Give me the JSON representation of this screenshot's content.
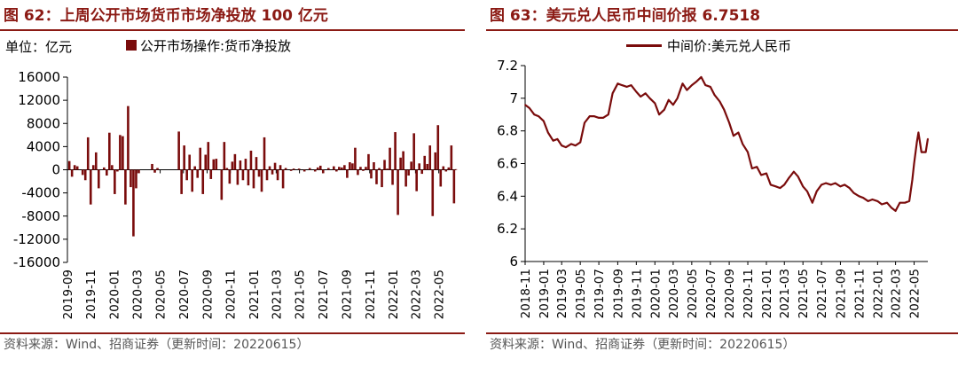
{
  "chart_data": [
    {
      "type": "bar",
      "title": "图 62：上周公开市场货币市场净投放 100 亿元",
      "unit_label": "单位：亿元",
      "legend": [
        "公开市场操作:货币净投放"
      ],
      "color": "#7a0c0c",
      "y_ticks": [
        "16000",
        "12000",
        "8000",
        "4000",
        "0",
        "-4000",
        "-8000",
        "-12000",
        "-16000"
      ],
      "ylim": [
        -16000,
        16000
      ],
      "x_ticks": [
        "2019-09",
        "2019-11",
        "2020-01",
        "2020-03",
        "2020-05",
        "2020-07",
        "2020-09",
        "2020-11",
        "2021-01",
        "2021-03",
        "2021-05",
        "2021-07",
        "2021-09",
        "2021-11",
        "2022-01",
        "2022-03",
        "2022-05"
      ],
      "x_range": [
        "2019-09-01",
        "2022-06-15"
      ],
      "series": [
        {
          "points": [
            [
              "2019-09-06",
              1500
            ],
            [
              "2019-09-13",
              -1200
            ],
            [
              "2019-09-20",
              800
            ],
            [
              "2019-09-27",
              600
            ],
            [
              "2019-10-11",
              -900
            ],
            [
              "2019-10-18",
              -1800
            ],
            [
              "2019-10-25",
              5600
            ],
            [
              "2019-11-01",
              -6000
            ],
            [
              "2019-11-08",
              800
            ],
            [
              "2019-11-15",
              3000
            ],
            [
              "2019-11-22",
              -3200
            ],
            [
              "2019-12-06",
              400
            ],
            [
              "2019-12-13",
              -1000
            ],
            [
              "2019-12-20",
              6400
            ],
            [
              "2019-12-27",
              800
            ],
            [
              "2020-01-03",
              -4200
            ],
            [
              "2020-01-10",
              -300
            ],
            [
              "2020-01-17",
              6000
            ],
            [
              "2020-01-24",
              5800
            ],
            [
              "2020-01-31",
              -6000
            ],
            [
              "2020-02-07",
              11000
            ],
            [
              "2020-02-14",
              -3000
            ],
            [
              "2020-02-21",
              -11500
            ],
            [
              "2020-02-28",
              -3200
            ],
            [
              "2020-03-06",
              -600
            ],
            [
              "2020-04-10",
              1000
            ],
            [
              "2020-04-17",
              -500
            ],
            [
              "2020-04-24",
              300
            ],
            [
              "2020-06-19",
              6600
            ],
            [
              "2020-06-26",
              -4200
            ],
            [
              "2020-07-03",
              4200
            ],
            [
              "2020-07-10",
              -1800
            ],
            [
              "2020-07-17",
              2600
            ],
            [
              "2020-07-24",
              -3800
            ],
            [
              "2020-07-31",
              600
            ],
            [
              "2020-08-07",
              -1400
            ],
            [
              "2020-08-14",
              3800
            ],
            [
              "2020-08-21",
              -4200
            ],
            [
              "2020-08-28",
              2600
            ],
            [
              "2020-09-04",
              4800
            ],
            [
              "2020-09-11",
              -1600
            ],
            [
              "2020-09-18",
              1800
            ],
            [
              "2020-09-25",
              1900
            ],
            [
              "2020-10-09",
              -5200
            ],
            [
              "2020-10-16",
              4800
            ],
            [
              "2020-10-23",
              300
            ],
            [
              "2020-10-30",
              -2400
            ],
            [
              "2020-11-06",
              1400
            ],
            [
              "2020-11-13",
              2700
            ],
            [
              "2020-11-20",
              -2600
            ],
            [
              "2020-11-27",
              1600
            ],
            [
              "2020-12-04",
              -1800
            ],
            [
              "2020-12-11",
              1900
            ],
            [
              "2020-12-18",
              -2700
            ],
            [
              "2020-12-25",
              3300
            ],
            [
              "2021-01-01",
              -3200
            ],
            [
              "2021-01-08",
              2200
            ],
            [
              "2021-01-15",
              -1200
            ],
            [
              "2021-01-22",
              -3800
            ],
            [
              "2021-01-29",
              5600
            ],
            [
              "2021-02-05",
              -1800
            ],
            [
              "2021-02-12",
              600
            ],
            [
              "2021-02-19",
              -800
            ],
            [
              "2021-02-26",
              1200
            ],
            [
              "2021-03-05",
              -1800
            ],
            [
              "2021-03-12",
              800
            ],
            [
              "2021-03-19",
              -3200
            ],
            [
              "2021-03-26",
              300
            ],
            [
              "2021-04-09",
              -200
            ],
            [
              "2021-04-16",
              200
            ],
            [
              "2021-04-30",
              200
            ],
            [
              "2021-05-14",
              -300
            ],
            [
              "2021-05-28",
              300
            ],
            [
              "2021-06-11",
              -300
            ],
            [
              "2021-06-18",
              400
            ],
            [
              "2021-06-25",
              700
            ],
            [
              "2021-07-02",
              -600
            ],
            [
              "2021-07-16",
              300
            ],
            [
              "2021-07-30",
              600
            ],
            [
              "2021-08-06",
              -300
            ],
            [
              "2021-08-13",
              500
            ],
            [
              "2021-08-20",
              400
            ],
            [
              "2021-08-27",
              800
            ],
            [
              "2021-09-03",
              -1400
            ],
            [
              "2021-09-10",
              1300
            ],
            [
              "2021-09-17",
              1100
            ],
            [
              "2021-09-24",
              3800
            ],
            [
              "2021-10-01",
              -900
            ],
            [
              "2021-10-08",
              500
            ],
            [
              "2021-10-15",
              -200
            ],
            [
              "2021-10-22",
              500
            ],
            [
              "2021-10-29",
              2700
            ],
            [
              "2021-11-05",
              -1500
            ],
            [
              "2021-11-12",
              1300
            ],
            [
              "2021-11-19",
              -2500
            ],
            [
              "2021-11-26",
              300
            ],
            [
              "2021-12-03",
              -3000
            ],
            [
              "2021-12-10",
              1700
            ],
            [
              "2021-12-17",
              200
            ],
            [
              "2021-12-24",
              3800
            ],
            [
              "2021-12-31",
              -2600
            ],
            [
              "2022-01-07",
              6500
            ],
            [
              "2022-01-14",
              -7800
            ],
            [
              "2022-01-21",
              2100
            ],
            [
              "2022-01-28",
              3200
            ],
            [
              "2022-02-04",
              -2900
            ],
            [
              "2022-02-11",
              -1000
            ],
            [
              "2022-02-18",
              1400
            ],
            [
              "2022-02-25",
              6300
            ],
            [
              "2022-03-04",
              -3700
            ],
            [
              "2022-03-11",
              1100
            ],
            [
              "2022-03-18",
              -700
            ],
            [
              "2022-03-25",
              2400
            ],
            [
              "2022-04-01",
              1000
            ],
            [
              "2022-04-08",
              4200
            ],
            [
              "2022-04-15",
              -8000
            ],
            [
              "2022-04-22",
              3000
            ],
            [
              "2022-04-29",
              7700
            ],
            [
              "2022-05-06",
              -2900
            ],
            [
              "2022-05-13",
              600
            ],
            [
              "2022-05-20",
              -300
            ],
            [
              "2022-05-27",
              400
            ],
            [
              "2022-06-03",
              4200
            ],
            [
              "2022-06-10",
              -5800
            ],
            [
              "2022-06-15",
              100
            ]
          ]
        }
      ],
      "source": "资料来源：Wind、招商证券（更新时间：20220615）"
    },
    {
      "type": "line",
      "title": "图 63：美元兑人民币中间价报 6.7518",
      "legend": [
        "中间价:美元兑人民币"
      ],
      "color": "#7a0c0c",
      "y_ticks": [
        "7.2",
        "7",
        "6.8",
        "6.6",
        "6.4",
        "6.2",
        "6"
      ],
      "ylim": [
        6,
        7.2
      ],
      "x_ticks": [
        "2018-11",
        "2019-01",
        "2019-03",
        "2019-05",
        "2019-07",
        "2019-09",
        "2019-11",
        "2020-01",
        "2020-03",
        "2020-05",
        "2020-07",
        "2020-09",
        "2020-11",
        "2021-01",
        "2021-03",
        "2021-05",
        "2021-07",
        "2021-09",
        "2021-11",
        "2022-01",
        "2022-03",
        "2022-05"
      ],
      "x_range": [
        "2018-11-01",
        "2022-06-15"
      ],
      "series": [
        {
          "name": "中间价:美元兑人民币",
          "points": [
            [
              "2018-11-01",
              6.96
            ],
            [
              "2018-11-15",
              6.94
            ],
            [
              "2018-12-01",
              6.9
            ],
            [
              "2018-12-15",
              6.89
            ],
            [
              "2019-01-01",
              6.86
            ],
            [
              "2019-01-15",
              6.79
            ],
            [
              "2019-02-01",
              6.74
            ],
            [
              "2019-02-15",
              6.75
            ],
            [
              "2019-03-01",
              6.71
            ],
            [
              "2019-03-15",
              6.7
            ],
            [
              "2019-04-01",
              6.72
            ],
            [
              "2019-04-15",
              6.71
            ],
            [
              "2019-05-01",
              6.73
            ],
            [
              "2019-05-15",
              6.85
            ],
            [
              "2019-06-01",
              6.89
            ],
            [
              "2019-06-15",
              6.89
            ],
            [
              "2019-07-01",
              6.88
            ],
            [
              "2019-07-15",
              6.88
            ],
            [
              "2019-08-01",
              6.9
            ],
            [
              "2019-08-15",
              7.03
            ],
            [
              "2019-09-01",
              7.09
            ],
            [
              "2019-09-15",
              7.08
            ],
            [
              "2019-10-01",
              7.07
            ],
            [
              "2019-10-15",
              7.08
            ],
            [
              "2019-11-01",
              7.04
            ],
            [
              "2019-11-15",
              7.01
            ],
            [
              "2019-12-01",
              7.03
            ],
            [
              "2019-12-15",
              7.0
            ],
            [
              "2020-01-01",
              6.97
            ],
            [
              "2020-01-15",
              6.9
            ],
            [
              "2020-02-01",
              6.93
            ],
            [
              "2020-02-15",
              6.99
            ],
            [
              "2020-03-01",
              6.96
            ],
            [
              "2020-03-15",
              7.0
            ],
            [
              "2020-04-01",
              7.09
            ],
            [
              "2020-04-15",
              7.05
            ],
            [
              "2020-05-01",
              7.08
            ],
            [
              "2020-05-15",
              7.1
            ],
            [
              "2020-06-01",
              7.13
            ],
            [
              "2020-06-15",
              7.08
            ],
            [
              "2020-07-01",
              7.07
            ],
            [
              "2020-07-15",
              7.02
            ],
            [
              "2020-08-01",
              6.98
            ],
            [
              "2020-08-15",
              6.93
            ],
            [
              "2020-09-01",
              6.85
            ],
            [
              "2020-09-15",
              6.77
            ],
            [
              "2020-10-01",
              6.79
            ],
            [
              "2020-10-15",
              6.72
            ],
            [
              "2020-11-01",
              6.67
            ],
            [
              "2020-11-15",
              6.57
            ],
            [
              "2020-12-01",
              6.58
            ],
            [
              "2020-12-15",
              6.53
            ],
            [
              "2021-01-01",
              6.54
            ],
            [
              "2021-01-15",
              6.47
            ],
            [
              "2021-02-01",
              6.46
            ],
            [
              "2021-02-15",
              6.45
            ],
            [
              "2021-03-01",
              6.47
            ],
            [
              "2021-03-15",
              6.51
            ],
            [
              "2021-04-01",
              6.55
            ],
            [
              "2021-04-15",
              6.52
            ],
            [
              "2021-05-01",
              6.46
            ],
            [
              "2021-05-15",
              6.43
            ],
            [
              "2021-06-01",
              6.36
            ],
            [
              "2021-06-15",
              6.43
            ],
            [
              "2021-07-01",
              6.47
            ],
            [
              "2021-07-15",
              6.48
            ],
            [
              "2021-08-01",
              6.47
            ],
            [
              "2021-08-15",
              6.48
            ],
            [
              "2021-09-01",
              6.46
            ],
            [
              "2021-09-15",
              6.47
            ],
            [
              "2021-10-01",
              6.45
            ],
            [
              "2021-10-15",
              6.42
            ],
            [
              "2021-11-01",
              6.4
            ],
            [
              "2021-11-15",
              6.39
            ],
            [
              "2021-12-01",
              6.37
            ],
            [
              "2021-12-15",
              6.38
            ],
            [
              "2022-01-01",
              6.37
            ],
            [
              "2022-01-15",
              6.35
            ],
            [
              "2022-02-01",
              6.36
            ],
            [
              "2022-02-15",
              6.33
            ],
            [
              "2022-03-01",
              6.31
            ],
            [
              "2022-03-15",
              6.36
            ],
            [
              "2022-04-01",
              6.36
            ],
            [
              "2022-04-15",
              6.37
            ],
            [
              "2022-04-25",
              6.5
            ],
            [
              "2022-05-01",
              6.6
            ],
            [
              "2022-05-10",
              6.73
            ],
            [
              "2022-05-15",
              6.79
            ],
            [
              "2022-05-20",
              6.73
            ],
            [
              "2022-05-25",
              6.67
            ],
            [
              "2022-06-01",
              6.67
            ],
            [
              "2022-06-08",
              6.67
            ],
            [
              "2022-06-15",
              6.7518
            ]
          ]
        }
      ],
      "source": "资料来源：Wind、招商证券（更新时间：20220615）"
    }
  ]
}
